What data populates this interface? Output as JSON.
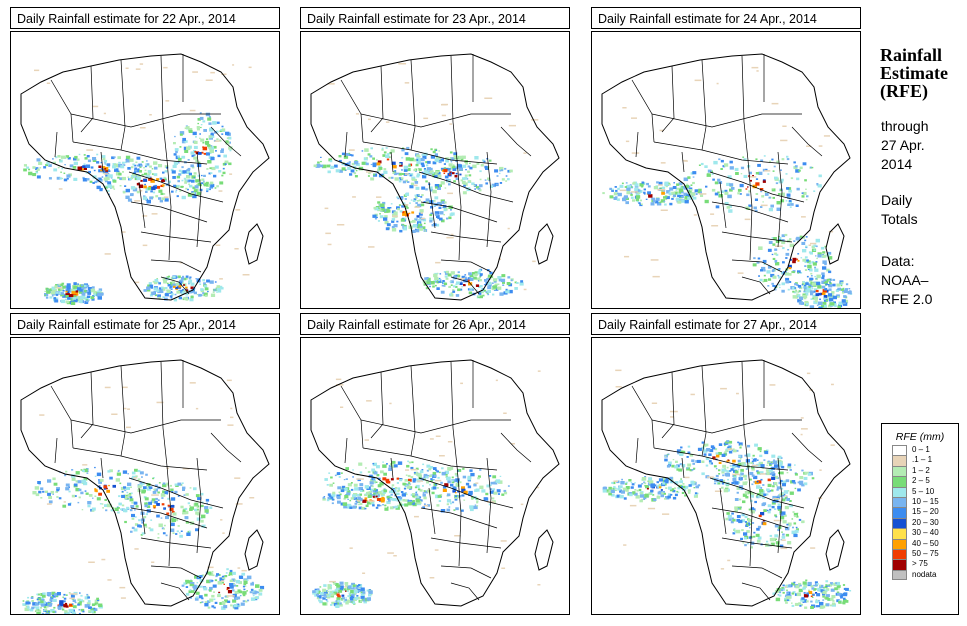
{
  "panels": [
    {
      "title": "Daily Rainfall estimate for  22 Apr., 2014"
    },
    {
      "title": "Daily Rainfall estimate for  23 Apr., 2014"
    },
    {
      "title": "Daily Rainfall estimate for  24 Apr., 2014"
    },
    {
      "title": "Daily Rainfall estimate for  25 Apr., 2014"
    },
    {
      "title": "Daily Rainfall estimate for  26 Apr., 2014"
    },
    {
      "title": "Daily Rainfall estimate for  27 Apr., 2014"
    }
  ],
  "sidebar": {
    "title_line1": "Rainfall",
    "title_line2": "Estimate",
    "title_line3": "(RFE)",
    "through_label": "through",
    "through_date_line1": "27 Apr.",
    "through_date_line2": "2014",
    "totals_line1": "Daily",
    "totals_line2": "Totals",
    "data_line1": "Data:",
    "data_line2": "NOAA–",
    "data_line3": "RFE 2.0"
  },
  "legend": {
    "title": "RFE (mm)",
    "items": [
      {
        "label": "0 – 1",
        "color": "#ffffff"
      },
      {
        "label": ".1 – 1",
        "color": "#e8d4b8"
      },
      {
        "label": "1 – 2",
        "color": "#b4ecb4"
      },
      {
        "label": "2 – 5",
        "color": "#78dc78"
      },
      {
        "label": "5 – 10",
        "color": "#9fe8ec"
      },
      {
        "label": "10 – 15",
        "color": "#78b4f0"
      },
      {
        "label": "15 – 20",
        "color": "#3c8cf0"
      },
      {
        "label": "20 – 30",
        "color": "#1450d2"
      },
      {
        "label": "30 – 40",
        "color": "#ffe14b"
      },
      {
        "label": "40 – 50",
        "color": "#ffa000"
      },
      {
        "label": "50 – 75",
        "color": "#f03c00"
      },
      {
        "label": "> 75",
        "color": "#a00000"
      },
      {
        "label": "nodata",
        "color": "#c0c0c0"
      }
    ]
  }
}
